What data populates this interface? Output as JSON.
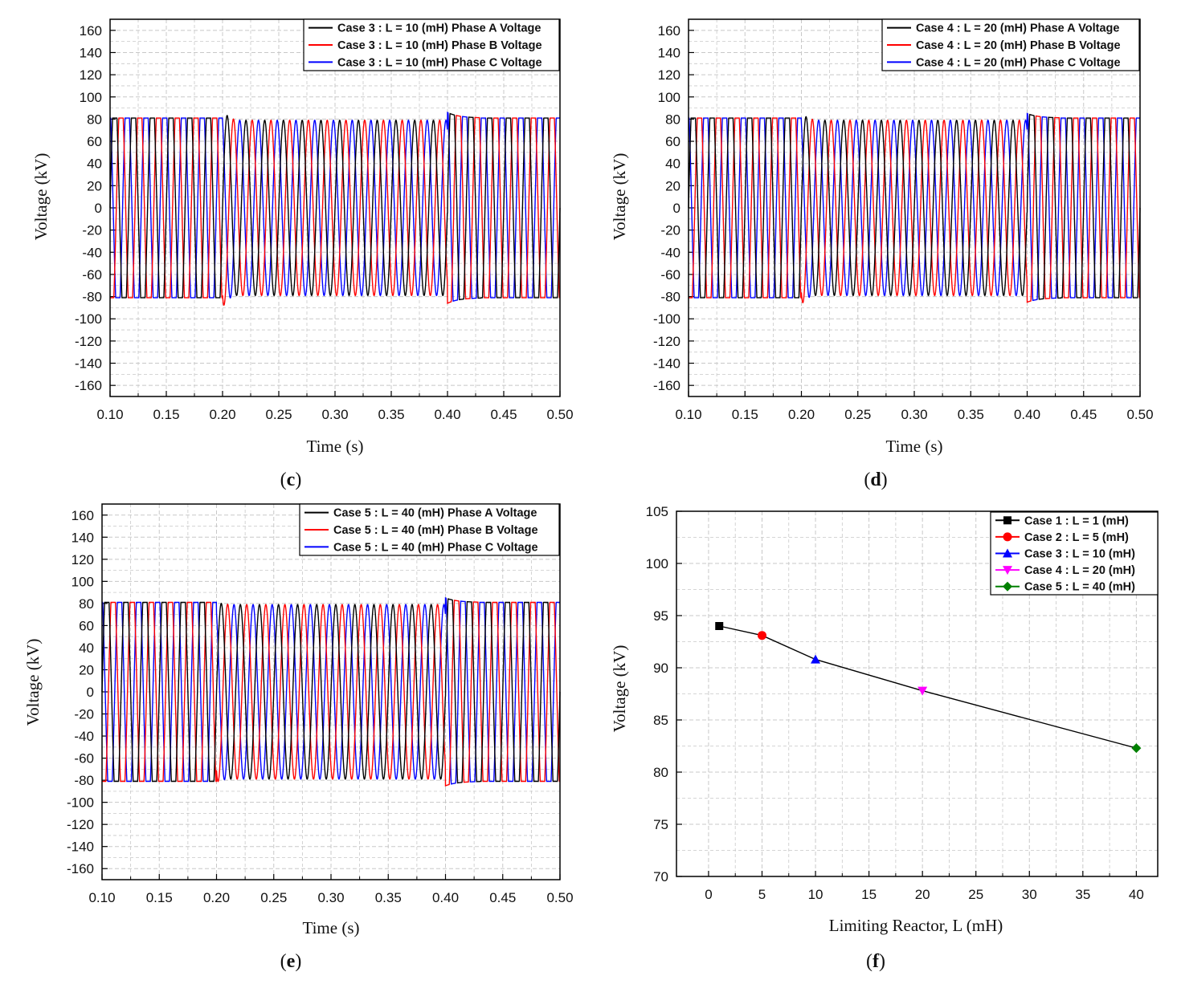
{
  "colors": {
    "phaseA": "#000000",
    "phaseB": "#ff0000",
    "phaseC": "#0000ff",
    "grid": "#c8c8c8",
    "case1": "#000000",
    "case2": "#ff0000",
    "case3": "#0000ff",
    "case4": "#ff00ff",
    "case5": "#008000"
  },
  "chart_data": [
    {
      "id": "c",
      "type": "line",
      "caption_open": "(",
      "caption_letter": "c",
      "caption_close": ")",
      "xlabel": "Time (s)",
      "ylabel": "Voltage (kV)",
      "xlim": [
        0.1,
        0.5
      ],
      "ylim": [
        -170,
        170
      ],
      "x_ticks": [
        "0.10",
        "0.15",
        "0.20",
        "0.25",
        "0.30",
        "0.35",
        "0.40",
        "0.45",
        "0.50"
      ],
      "y_ticks": [
        "160",
        "140",
        "120",
        "100",
        "80",
        "60",
        "40",
        "20",
        "0",
        "-20",
        "-40",
        "-60",
        "-80",
        "-100",
        "-120",
        "-140",
        "-160"
      ],
      "series": [
        {
          "name": "Case 3 : L = 10 (mH) Phase A Voltage",
          "color": "#000000"
        },
        {
          "name": "Case 3 : L = 10 (mH) Phase B Voltage",
          "color": "#ff0000"
        },
        {
          "name": "Case 3 : L = 10 (mH) Phase C Voltage",
          "color": "#0000ff"
        }
      ],
      "steady_amplitude_kV": 81,
      "fault_amplitude_kV": 79,
      "fault_interval_s": [
        0.2,
        0.4
      ],
      "peak_after_fault_kV": 91,
      "peak_after_clearing_kV": -86
    },
    {
      "id": "d",
      "type": "line",
      "caption_open": "(",
      "caption_letter": "d",
      "caption_close": ")",
      "xlabel": "Time (s)",
      "ylabel": "Voltage (kV)",
      "xlim": [
        0.1,
        0.5
      ],
      "ylim": [
        -170,
        170
      ],
      "x_ticks": [
        "0.10",
        "0.15",
        "0.20",
        "0.25",
        "0.30",
        "0.35",
        "0.40",
        "0.45",
        "0.50"
      ],
      "y_ticks": [
        "160",
        "140",
        "120",
        "100",
        "80",
        "60",
        "40",
        "20",
        "0",
        "-20",
        "-40",
        "-60",
        "-80",
        "-100",
        "-120",
        "-140",
        "-160"
      ],
      "series": [
        {
          "name": "Case 4 : L = 20 (mH) Phase A Voltage",
          "color": "#000000"
        },
        {
          "name": "Case 4 : L = 20 (mH) Phase B Voltage",
          "color": "#ff0000"
        },
        {
          "name": "Case 4 : L = 20 (mH) Phase C Voltage",
          "color": "#0000ff"
        }
      ],
      "steady_amplitude_kV": 81,
      "fault_amplitude_kV": 79,
      "fault_interval_s": [
        0.2,
        0.4
      ],
      "peak_after_fault_kV": 88,
      "peak_after_clearing_kV": -85
    },
    {
      "id": "e",
      "type": "line",
      "caption_open": "(",
      "caption_letter": "e",
      "caption_close": ")",
      "xlabel": "Time (s)",
      "ylabel": "Voltage (kV)",
      "xlim": [
        0.1,
        0.5
      ],
      "ylim": [
        -170,
        170
      ],
      "x_ticks": [
        "0.10",
        "0.15",
        "0.20",
        "0.25",
        "0.30",
        "0.35",
        "0.40",
        "0.45",
        "0.50"
      ],
      "y_ticks": [
        "160",
        "140",
        "120",
        "100",
        "80",
        "60",
        "40",
        "20",
        "0",
        "-20",
        "-40",
        "-60",
        "-80",
        "-100",
        "-120",
        "-140",
        "-160"
      ],
      "series": [
        {
          "name": "Case 5 : L = 40 (mH) Phase A Voltage",
          "color": "#000000"
        },
        {
          "name": "Case 5 : L = 40 (mH) Phase B Voltage",
          "color": "#ff0000"
        },
        {
          "name": "Case 5 : L = 40 (mH) Phase C Voltage",
          "color": "#0000ff"
        }
      ],
      "steady_amplitude_kV": 81,
      "fault_amplitude_kV": 79,
      "fault_interval_s": [
        0.2,
        0.4
      ],
      "peak_after_fault_kV": 82,
      "peak_after_clearing_kV": -85
    },
    {
      "id": "f",
      "type": "scatter",
      "caption_open": "(",
      "caption_letter": "f",
      "caption_close": ")",
      "xlabel": "Limiting Reactor, L (mH)",
      "ylabel": "Voltage (kV)",
      "xlim": [
        -3,
        42
      ],
      "ylim": [
        70,
        105
      ],
      "x_ticks": [
        "0",
        "5",
        "10",
        "15",
        "20",
        "25",
        "30",
        "35",
        "40"
      ],
      "y_ticks": [
        "105",
        "100",
        "95",
        "90",
        "85",
        "80",
        "75",
        "70"
      ],
      "x_tick_values": [
        0,
        5,
        10,
        15,
        20,
        25,
        30,
        35,
        40
      ],
      "y_tick_values": [
        105,
        100,
        95,
        90,
        85,
        80,
        75,
        70
      ],
      "series": [
        {
          "name": "Case 1 : L = 1   (mH)",
          "color": "#000000",
          "marker": "square",
          "x": 1,
          "y": 94.0
        },
        {
          "name": "Case 2 : L = 5   (mH)",
          "color": "#ff0000",
          "marker": "circle",
          "x": 5,
          "y": 93.1
        },
        {
          "name": "Case 3 : L = 10 (mH)",
          "color": "#0000ff",
          "marker": "triangle-up",
          "x": 10,
          "y": 90.8
        },
        {
          "name": "Case 4 : L = 20 (mH)",
          "color": "#ff00ff",
          "marker": "triangle-down",
          "x": 20,
          "y": 87.8
        },
        {
          "name": "Case 5 : L = 40 (mH)",
          "color": "#008000",
          "marker": "diamond",
          "x": 40,
          "y": 82.3
        }
      ]
    }
  ]
}
